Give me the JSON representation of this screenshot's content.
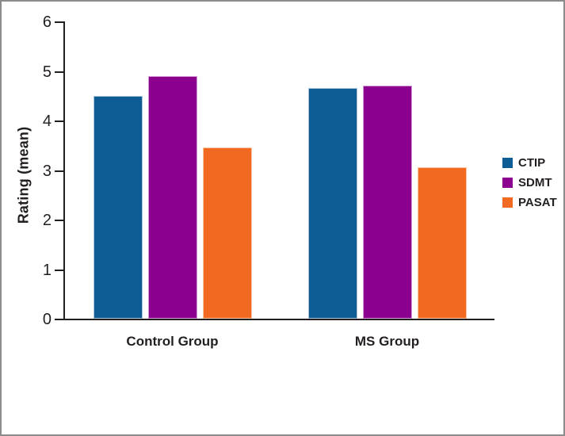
{
  "figure": {
    "background": "#ffffff",
    "border_color": "#8c8c8c"
  },
  "chart_data": {
    "type": "bar",
    "title": "",
    "xlabel": "",
    "ylabel": "Rating (mean)",
    "ylim": [
      0,
      6
    ],
    "yticks": [
      0,
      1,
      2,
      3,
      4,
      5,
      6
    ],
    "grid": false,
    "legend_position": "right",
    "axis_color": "#231f20",
    "text_color": "#231f20",
    "categories": [
      "Control Group",
      "MS Group"
    ],
    "series": [
      {
        "name": "CTIP",
        "color": "#0e5c94",
        "edge_color": "#a9c6dc",
        "values": [
          4.5,
          4.65
        ]
      },
      {
        "name": "SDMT",
        "color": "#8b008f",
        "edge_color": "#d49ad5",
        "values": [
          4.9,
          4.7
        ]
      },
      {
        "name": "PASAT",
        "color": "#f26a22",
        "edge_color": "#f9c49e",
        "values": [
          3.45,
          3.05
        ]
      }
    ]
  }
}
